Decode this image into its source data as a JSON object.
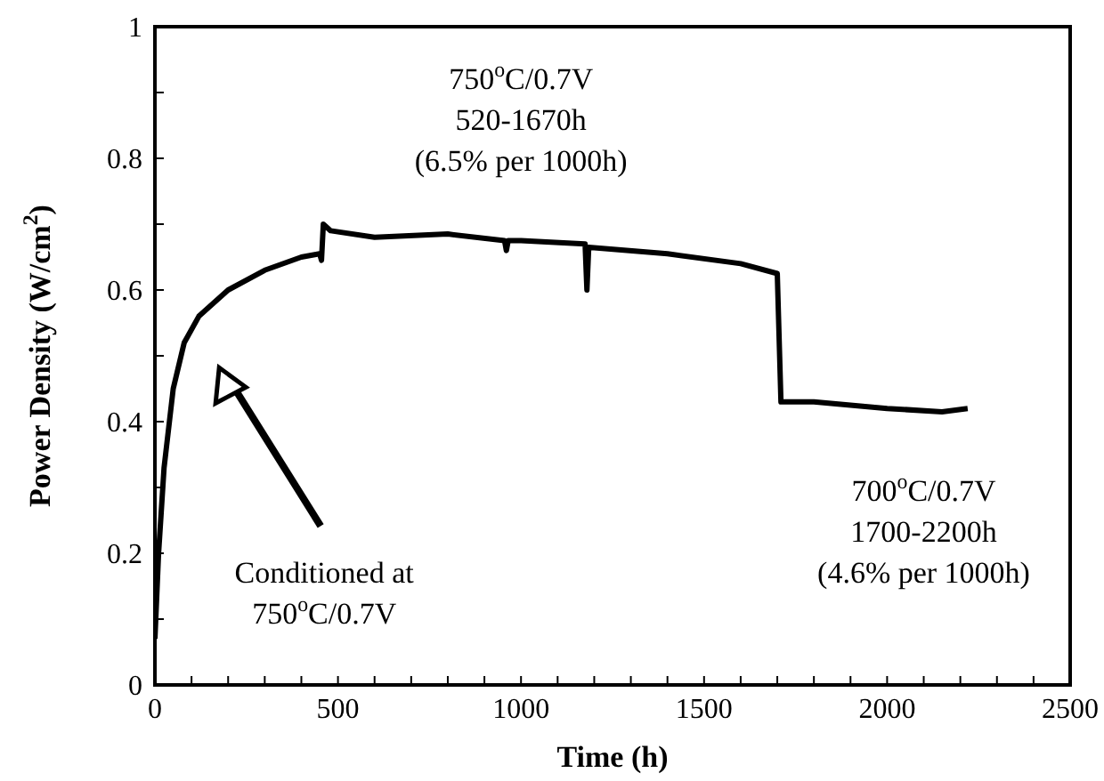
{
  "chart_data": {
    "type": "line",
    "xlabel": "Time (h)",
    "ylabel": "Power Density (W/cm$^{2}$)",
    "x": [
      0,
      10,
      25,
      50,
      80,
      120,
      200,
      300,
      400,
      450,
      455,
      460,
      480,
      600,
      800,
      955,
      960,
      965,
      1000,
      1175,
      1180,
      1185,
      1400,
      1600,
      1700,
      1710,
      1800,
      2000,
      2150,
      2220
    ],
    "series": [
      {
        "color": "#000000",
        "values": [
          0.07,
          0.2,
          0.33,
          0.45,
          0.52,
          0.56,
          0.6,
          0.63,
          0.65,
          0.655,
          0.645,
          0.7,
          0.69,
          0.68,
          0.685,
          0.675,
          0.66,
          0.675,
          0.675,
          0.67,
          0.6,
          0.665,
          0.655,
          0.64,
          0.625,
          0.43,
          0.43,
          0.42,
          0.415,
          0.42
        ]
      }
    ],
    "xlim": [
      0,
      2500
    ],
    "xticks": [
      0,
      {
        "value": 100,
        "label": null
      },
      {
        "value": 200,
        "label": null
      },
      {
        "value": 300,
        "label": null
      },
      {
        "value": 400,
        "label": null
      },
      500,
      {
        "value": 600,
        "label": null
      },
      {
        "value": 700,
        "label": null
      },
      {
        "value": 800,
        "label": null
      },
      {
        "value": 900,
        "label": null
      },
      1000,
      {
        "value": 1100,
        "label": null
      },
      {
        "value": 1200,
        "label": null
      },
      {
        "value": 1300,
        "label": null
      },
      {
        "value": 1400,
        "label": null
      },
      1500,
      {
        "value": 1600,
        "label": null
      },
      {
        "value": 1700,
        "label": null
      },
      {
        "value": 1800,
        "label": null
      },
      {
        "value": 1900,
        "label": null
      },
      2000,
      {
        "value": 2100,
        "label": null
      },
      {
        "value": 2200,
        "label": null
      },
      {
        "value": 2300,
        "label": null
      },
      {
        "value": 2400,
        "label": null
      },
      2500
    ],
    "ylim": [
      0,
      1
    ],
    "yticks": [
      0,
      {
        "value": 0.1,
        "label": null
      },
      0.2,
      {
        "value": 0.3,
        "label": null
      },
      0.4,
      {
        "value": 0.5,
        "label": null
      },
      0.6,
      {
        "value": 0.7,
        "label": null
      },
      0.8,
      {
        "value": 0.9,
        "label": null
      },
      1
    ],
    "annotations": [
      "750$^{o}$C/0.7V\n520-1670h\n(6.5% per 1000h)",
      "700$^{o}$C/0.7V\n1700-2200h\n(4.6% per 1000h)",
      "Conditioned  at\n750$^{o}$C/0.7V"
    ],
    "marker": "none",
    "line_style": "solid"
  }
}
